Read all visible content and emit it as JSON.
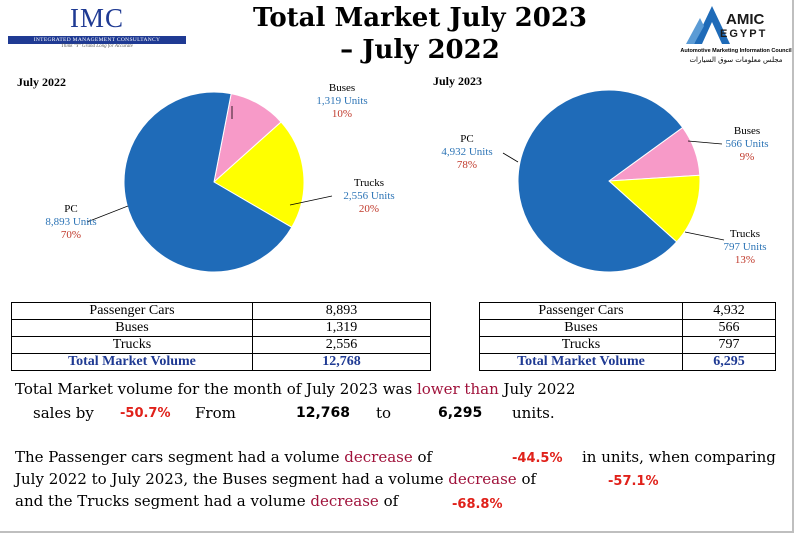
{
  "header": {
    "imc_name": "IMC",
    "imc_bar": "INTEGRATED MANAGEMENT CONSULTANCY",
    "imc_tagline": "Think \"Y\" Grand Long for Accurate",
    "title_line1": "Total Market July 2023",
    "title_line2": "– July 2022",
    "amic_line1": "AMIC",
    "amic_line2": "EGYPT",
    "amic_sub": "Automotive Marketing Information Council",
    "amic_arabic": "مجلس معلومات سوق السيارات"
  },
  "pie_left": {
    "label": "July 2022",
    "slices": [
      {
        "name": "PC",
        "units": "8,893 Units",
        "pct": "70%",
        "value": 8893,
        "color": "#1f6bb8"
      },
      {
        "name": "Buses",
        "units": "1,319  Units",
        "pct": "10%",
        "value": 1319,
        "color": "#f79ac8"
      },
      {
        "name": "Trucks",
        "units": "2,556 Units",
        "pct": "20%",
        "value": 2556,
        "color": "#ffff00"
      }
    ]
  },
  "pie_right": {
    "label": "July 2023",
    "slices": [
      {
        "name": "PC",
        "units": "4,932 Units",
        "pct": "78%",
        "value": 4932,
        "color": "#1f6bb8"
      },
      {
        "name": "Buses",
        "units": "566 Units",
        "pct": "9%",
        "value": 566,
        "color": "#f79ac8"
      },
      {
        "name": "Trucks",
        "units": "797 Units",
        "pct": "13%",
        "value": 797,
        "color": "#ffff00"
      }
    ]
  },
  "table_left": {
    "rows": [
      [
        "Passenger Cars",
        "8,893"
      ],
      [
        "Buses",
        "1,319"
      ],
      [
        "Trucks",
        "2,556"
      ]
    ],
    "total": [
      "Total Market Volume",
      "12,768"
    ]
  },
  "table_right": {
    "rows": [
      [
        "Passenger Cars",
        "4,932"
      ],
      [
        "Buses",
        "566"
      ],
      [
        "Trucks",
        "797"
      ]
    ],
    "total": [
      "Total Market Volume",
      "6,295"
    ]
  },
  "summary": {
    "l1_a": "Total Market volume for the month of July 2023 was ",
    "l1_b": "lower than",
    "l1_c": " July 2022",
    "l2_a": "sales by",
    "l2_pct": "-50.7%",
    "l2_from": "From",
    "l2_v1": "12,768",
    "l2_to": "to",
    "l2_v2": "6,295",
    "l2_units": "units."
  },
  "segments": {
    "l1_a": "The Passenger cars segment had a volume ",
    "l1_dec": "decrease",
    "l1_of": " of",
    "l1_pct": "-44.5%",
    "l1_tail": "in units, when comparing",
    "l2_a": "July 2022 to July 2023, the Buses segment had a volume ",
    "l2_dec": "decrease",
    "l2_of": " of",
    "l2_pct": "-57.1%",
    "l3_a": "and the Trucks segment had a volume ",
    "l3_dec": "decrease",
    "l3_of": " of",
    "l3_pct": "-68.8%"
  }
}
